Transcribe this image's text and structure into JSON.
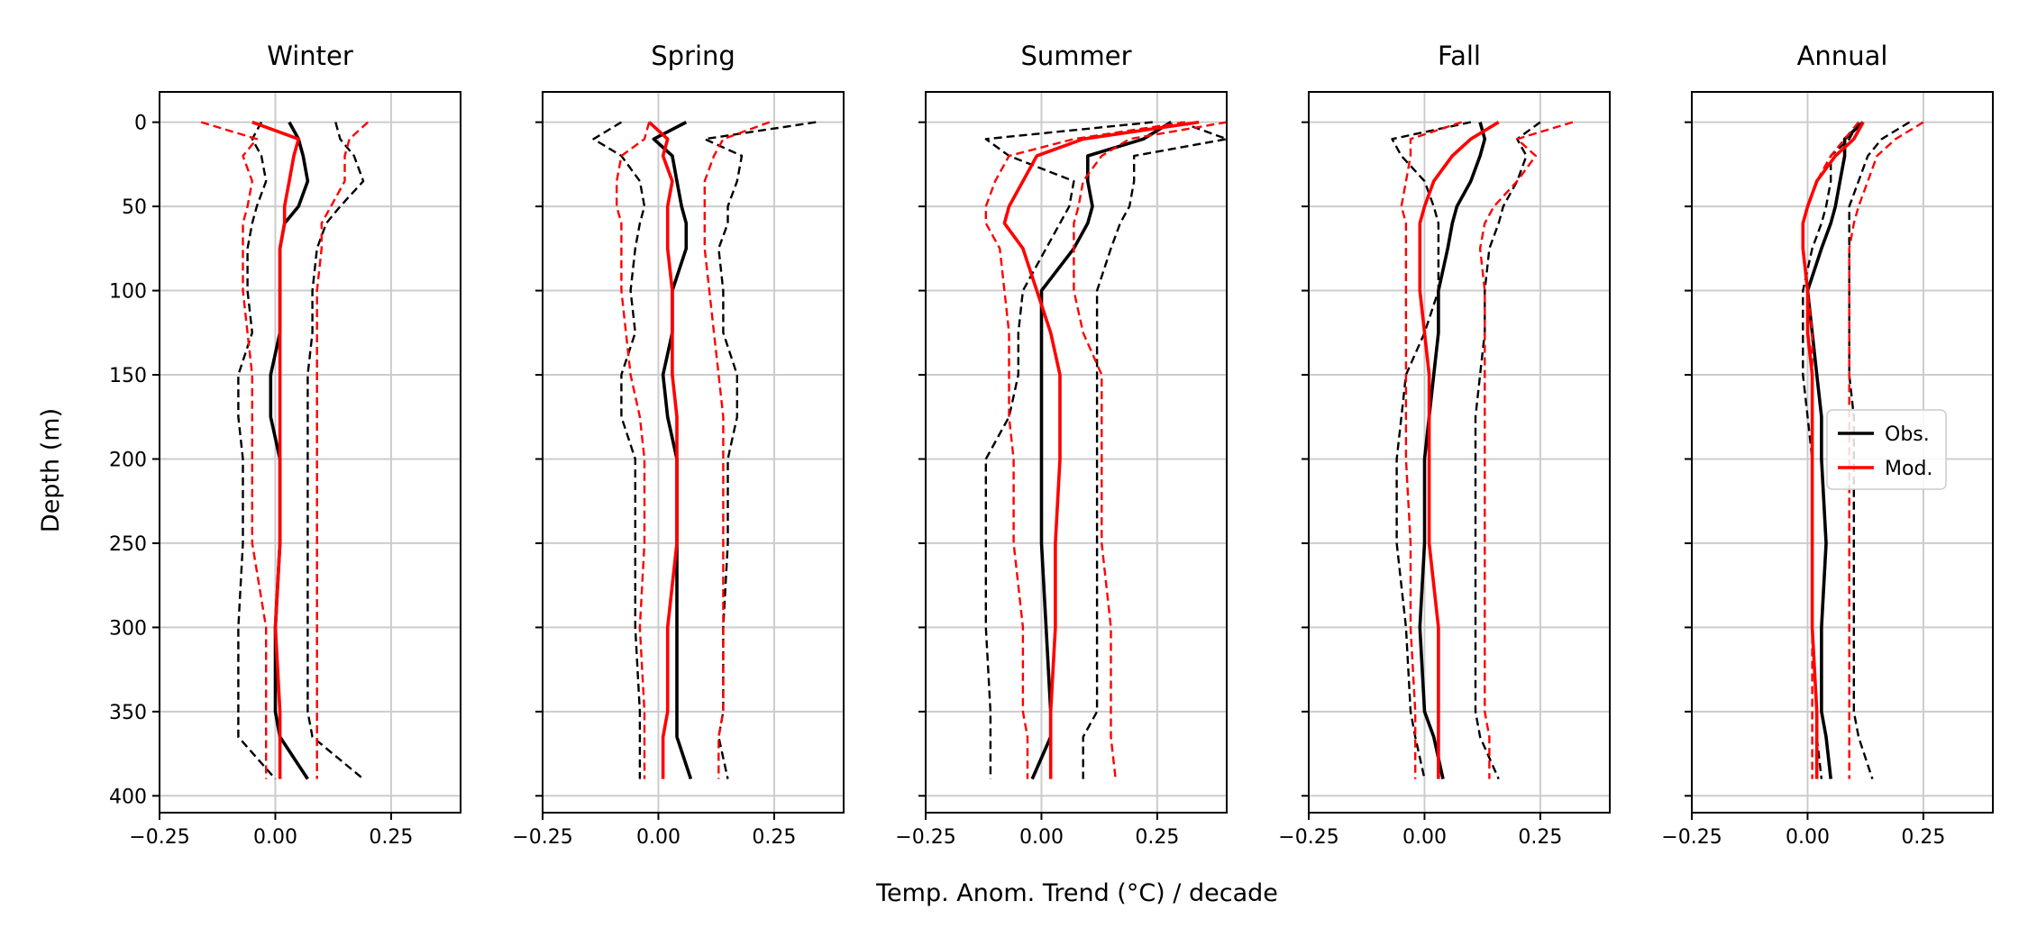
{
  "chart_data": {
    "type": "line",
    "xlabel": "Temp. Anom. Trend (°C) / decade",
    "ylabel": "Depth (m)",
    "xlim": [
      -0.25,
      0.4
    ],
    "ylim": [
      410,
      -18
    ],
    "xticks": [
      -0.25,
      0.0,
      0.25
    ],
    "xtick_labels": [
      "−0.25",
      "0.00",
      "0.25"
    ],
    "yticks": [
      0,
      50,
      100,
      150,
      200,
      250,
      300,
      350,
      400
    ],
    "ytick_labels": [
      "0",
      "50",
      "100",
      "150",
      "200",
      "250",
      "300",
      "350",
      "400"
    ],
    "grid": true,
    "colors": {
      "obs": "#000000",
      "mod": "#ff0000",
      "grid": "#cccccc"
    },
    "legend": {
      "panel": "Annual",
      "placement": "center-right",
      "entries": [
        {
          "label": "Obs.",
          "color": "#000000"
        },
        {
          "label": "Mod.",
          "color": "#ff0000"
        }
      ]
    },
    "panels": [
      {
        "title": "Winter",
        "depth": [
          0,
          10,
          20,
          35,
          50,
          60,
          75,
          100,
          125,
          150,
          175,
          200,
          250,
          300,
          350,
          365,
          390
        ],
        "series": [
          {
            "color": "#000000",
            "dash": false,
            "x": [
              0.03,
              0.05,
              0.06,
              0.07,
              0.05,
              0.02,
              0.01,
              0.01,
              0.01,
              -0.01,
              -0.01,
              0.01,
              0.01,
              0.0,
              0.0,
              0.01,
              0.07
            ]
          },
          {
            "color": "#000000",
            "dash": true,
            "x": [
              -0.03,
              -0.05,
              -0.03,
              -0.02,
              -0.04,
              -0.05,
              -0.06,
              -0.06,
              -0.05,
              -0.08,
              -0.08,
              -0.07,
              -0.07,
              -0.08,
              -0.08,
              -0.08,
              0.0
            ]
          },
          {
            "color": "#000000",
            "dash": true,
            "x": [
              0.13,
              0.14,
              0.17,
              0.19,
              0.14,
              0.11,
              0.09,
              0.08,
              0.08,
              0.07,
              0.07,
              0.07,
              0.07,
              0.07,
              0.07,
              0.08,
              0.19
            ]
          },
          {
            "color": "#ff0000",
            "dash": false,
            "x": [
              -0.05,
              0.05,
              0.04,
              0.03,
              0.02,
              0.02,
              0.01,
              0.01,
              0.01,
              0.01,
              0.01,
              0.01,
              0.01,
              0.0,
              0.01,
              0.01,
              0.01
            ]
          },
          {
            "color": "#ff0000",
            "dash": true,
            "x": [
              -0.16,
              -0.04,
              -0.07,
              -0.05,
              -0.06,
              -0.07,
              -0.07,
              -0.07,
              -0.06,
              -0.05,
              -0.05,
              -0.05,
              -0.05,
              -0.02,
              -0.02,
              -0.02,
              -0.02
            ]
          },
          {
            "color": "#ff0000",
            "dash": true,
            "x": [
              0.2,
              0.16,
              0.15,
              0.15,
              0.12,
              0.1,
              0.1,
              0.09,
              0.09,
              0.09,
              0.09,
              0.09,
              0.09,
              0.09,
              0.09,
              0.09,
              0.09
            ]
          }
        ]
      },
      {
        "title": "Spring",
        "depth": [
          0,
          10,
          20,
          35,
          50,
          60,
          75,
          100,
          125,
          150,
          175,
          200,
          250,
          300,
          350,
          365,
          390
        ],
        "series": [
          {
            "color": "#000000",
            "dash": false,
            "x": [
              0.06,
              -0.01,
              0.03,
              0.04,
              0.05,
              0.06,
              0.06,
              0.03,
              0.03,
              0.01,
              0.02,
              0.04,
              0.04,
              0.04,
              0.04,
              0.04,
              0.07
            ]
          },
          {
            "color": "#000000",
            "dash": true,
            "x": [
              -0.08,
              -0.14,
              -0.08,
              -0.04,
              -0.03,
              -0.04,
              -0.05,
              -0.06,
              -0.05,
              -0.08,
              -0.08,
              -0.05,
              -0.05,
              -0.05,
              -0.04,
              -0.04,
              -0.04
            ]
          },
          {
            "color": "#000000",
            "dash": true,
            "x": [
              0.34,
              0.1,
              0.18,
              0.17,
              0.15,
              0.15,
              0.13,
              0.14,
              0.14,
              0.17,
              0.17,
              0.15,
              0.15,
              0.14,
              0.14,
              0.13,
              0.15
            ]
          },
          {
            "color": "#ff0000",
            "dash": false,
            "x": [
              -0.02,
              0.02,
              0.01,
              0.03,
              0.02,
              0.02,
              0.02,
              0.03,
              0.03,
              0.03,
              0.04,
              0.04,
              0.04,
              0.02,
              0.02,
              0.01,
              0.01
            ]
          },
          {
            "color": "#ff0000",
            "dash": true,
            "x": [
              -0.02,
              -0.03,
              -0.08,
              -0.09,
              -0.09,
              -0.08,
              -0.08,
              -0.08,
              -0.07,
              -0.06,
              -0.04,
              -0.03,
              -0.03,
              -0.04,
              -0.03,
              -0.03,
              -0.03
            ]
          },
          {
            "color": "#ff0000",
            "dash": true,
            "x": [
              0.24,
              0.14,
              0.12,
              0.1,
              0.1,
              0.1,
              0.1,
              0.11,
              0.12,
              0.13,
              0.14,
              0.14,
              0.14,
              0.14,
              0.14,
              0.13,
              0.13
            ]
          }
        ]
      },
      {
        "title": "Summer",
        "depth": [
          0,
          10,
          20,
          35,
          50,
          60,
          75,
          100,
          125,
          150,
          175,
          200,
          250,
          300,
          350,
          365,
          390
        ],
        "series": [
          {
            "color": "#000000",
            "dash": false,
            "x": [
              0.28,
              0.22,
              0.1,
              0.1,
              0.11,
              0.1,
              0.07,
              0.0,
              0.0,
              0.0,
              0.0,
              0.0,
              0.0,
              0.01,
              0.02,
              0.02,
              -0.02
            ]
          },
          {
            "color": "#000000",
            "dash": true,
            "x": [
              0.24,
              -0.12,
              -0.07,
              0.07,
              0.06,
              0.04,
              0.01,
              -0.04,
              -0.05,
              -0.05,
              -0.07,
              -0.12,
              -0.12,
              -0.12,
              -0.11,
              -0.11,
              -0.11
            ]
          },
          {
            "color": "#000000",
            "dash": true,
            "x": [
              0.3,
              0.4,
              0.2,
              0.2,
              0.19,
              0.17,
              0.15,
              0.12,
              0.12,
              0.12,
              0.12,
              0.12,
              0.12,
              0.12,
              0.12,
              0.09,
              0.09
            ]
          },
          {
            "color": "#ff0000",
            "dash": false,
            "x": [
              0.34,
              0.09,
              -0.01,
              -0.04,
              -0.07,
              -0.08,
              -0.04,
              -0.01,
              0.02,
              0.04,
              0.04,
              0.04,
              0.03,
              0.03,
              0.02,
              0.02,
              0.02
            ]
          },
          {
            "color": "#ff0000",
            "dash": true,
            "x": [
              0.31,
              0.07,
              -0.07,
              -0.1,
              -0.12,
              -0.12,
              -0.09,
              -0.08,
              -0.07,
              -0.07,
              -0.07,
              -0.06,
              -0.06,
              -0.04,
              -0.04,
              -0.03,
              -0.03
            ]
          },
          {
            "color": "#ff0000",
            "dash": true,
            "x": [
              0.4,
              0.19,
              0.13,
              0.09,
              0.08,
              0.07,
              0.07,
              0.07,
              0.09,
              0.13,
              0.13,
              0.13,
              0.13,
              0.15,
              0.15,
              0.15,
              0.16
            ]
          }
        ]
      },
      {
        "title": "Fall",
        "depth": [
          0,
          10,
          20,
          35,
          50,
          60,
          75,
          100,
          125,
          150,
          175,
          200,
          250,
          300,
          350,
          365,
          390
        ],
        "series": [
          {
            "color": "#000000",
            "dash": false,
            "x": [
              0.12,
              0.13,
              0.12,
              0.1,
              0.07,
              0.06,
              0.05,
              0.03,
              0.03,
              0.02,
              0.01,
              0.0,
              0.0,
              -0.01,
              0.0,
              0.02,
              0.04
            ]
          },
          {
            "color": "#000000",
            "dash": true,
            "x": [
              0.1,
              -0.07,
              -0.05,
              0.0,
              0.02,
              0.03,
              0.03,
              0.03,
              0.0,
              -0.04,
              -0.05,
              -0.06,
              -0.06,
              -0.04,
              -0.03,
              -0.02,
              0.0
            ]
          },
          {
            "color": "#000000",
            "dash": true,
            "x": [
              0.25,
              0.2,
              0.22,
              0.2,
              0.17,
              0.16,
              0.14,
              0.13,
              0.13,
              0.12,
              0.11,
              0.11,
              0.11,
              0.11,
              0.11,
              0.12,
              0.16
            ]
          },
          {
            "color": "#ff0000",
            "dash": false,
            "x": [
              0.16,
              0.1,
              0.06,
              0.02,
              0.0,
              -0.01,
              -0.01,
              -0.01,
              0.0,
              0.01,
              0.01,
              0.01,
              0.01,
              0.03,
              0.03,
              0.03,
              0.03
            ]
          },
          {
            "color": "#ff0000",
            "dash": true,
            "x": [
              0.08,
              -0.03,
              -0.03,
              -0.04,
              -0.05,
              -0.04,
              -0.04,
              -0.04,
              -0.04,
              -0.04,
              -0.04,
              -0.04,
              -0.03,
              -0.03,
              -0.02,
              -0.02,
              -0.02
            ]
          },
          {
            "color": "#ff0000",
            "dash": true,
            "x": [
              0.32,
              0.2,
              0.24,
              0.2,
              0.15,
              0.13,
              0.12,
              0.13,
              0.13,
              0.13,
              0.13,
              0.13,
              0.13,
              0.13,
              0.13,
              0.14,
              0.14
            ]
          }
        ]
      },
      {
        "title": "Annual",
        "depth": [
          0,
          10,
          20,
          35,
          50,
          60,
          75,
          100,
          125,
          150,
          175,
          200,
          250,
          300,
          350,
          365,
          390
        ],
        "series": [
          {
            "color": "#000000",
            "dash": false,
            "x": [
              0.12,
              0.08,
              0.08,
              0.07,
              0.06,
              0.05,
              0.03,
              0.0,
              0.01,
              0.02,
              0.03,
              0.03,
              0.04,
              0.03,
              0.03,
              0.04,
              0.05
            ]
          },
          {
            "color": "#000000",
            "dash": true,
            "x": [
              0.11,
              0.09,
              0.05,
              0.05,
              0.04,
              0.03,
              0.01,
              -0.01,
              -0.01,
              -0.01,
              0.0,
              0.01,
              0.01,
              0.01,
              0.02,
              0.02,
              0.03
            ]
          },
          {
            "color": "#000000",
            "dash": true,
            "x": [
              0.22,
              0.16,
              0.13,
              0.11,
              0.09,
              0.09,
              0.09,
              0.09,
              0.09,
              0.09,
              0.1,
              0.1,
              0.1,
              0.1,
              0.1,
              0.11,
              0.14
            ]
          },
          {
            "color": "#ff0000",
            "dash": false,
            "x": [
              0.12,
              0.1,
              0.06,
              0.02,
              0.0,
              -0.01,
              -0.01,
              0.0,
              0.0,
              0.01,
              0.01,
              0.01,
              0.01,
              0.01,
              0.02,
              0.02,
              0.02
            ]
          },
          {
            "color": "#ff0000",
            "dash": true,
            "x": [
              0.11,
              0.08,
              0.05,
              0.02,
              0.0,
              -0.01,
              -0.01,
              0.0,
              0.01,
              0.01,
              0.01,
              0.01,
              0.01,
              0.01,
              0.01,
              0.01,
              0.01
            ]
          },
          {
            "color": "#ff0000",
            "dash": true,
            "x": [
              0.25,
              0.19,
              0.15,
              0.13,
              0.11,
              0.1,
              0.09,
              0.09,
              0.09,
              0.09,
              0.09,
              0.09,
              0.09,
              0.09,
              0.09,
              0.09,
              0.09
            ]
          }
        ]
      }
    ]
  }
}
